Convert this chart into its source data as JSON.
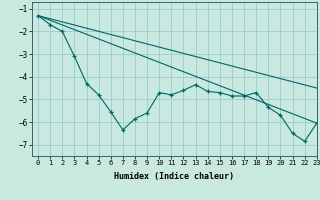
{
  "title": "",
  "xlabel": "Humidex (Indice chaleur)",
  "xlim": [
    -0.5,
    23
  ],
  "ylim": [
    -7.5,
    -0.7
  ],
  "yticks": [
    -7,
    -6,
    -5,
    -4,
    -3,
    -2,
    -1
  ],
  "xticks": [
    0,
    1,
    2,
    3,
    4,
    5,
    6,
    7,
    8,
    9,
    10,
    11,
    12,
    13,
    14,
    15,
    16,
    17,
    18,
    19,
    20,
    21,
    22,
    23
  ],
  "bg_color": "#c8e8e0",
  "grid_color": "#99cccc",
  "line_color": "#006666",
  "line1_x": [
    0,
    1,
    2,
    3,
    4,
    5,
    6,
    7,
    8,
    9,
    10,
    11,
    12,
    13,
    14,
    15,
    16,
    17,
    18,
    19,
    20,
    21,
    22,
    23
  ],
  "line1_y": [
    -1.3,
    -1.7,
    -2.0,
    -3.1,
    -4.3,
    -4.8,
    -5.55,
    -6.35,
    -5.85,
    -5.6,
    -4.7,
    -4.8,
    -4.6,
    -4.35,
    -4.65,
    -4.7,
    -4.85,
    -4.85,
    -4.7,
    -5.35,
    -5.7,
    -6.5,
    -6.85,
    -6.05
  ],
  "line2_x": [
    0,
    23
  ],
  "line2_y": [
    -1.3,
    -6.05
  ],
  "line3_x": [
    0,
    23
  ],
  "line3_y": [
    -1.3,
    -4.5
  ]
}
